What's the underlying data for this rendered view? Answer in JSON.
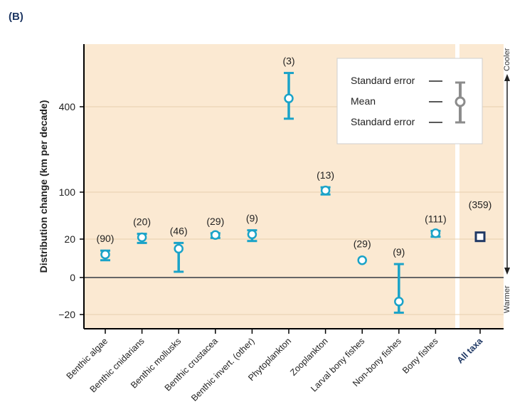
{
  "panel_label": "(B)",
  "chart_data": {
    "type": "scatter",
    "ylabel": "Distribution change (km per decade)",
    "ytick_labels": [
      "400",
      "100",
      "20",
      "0",
      "−20"
    ],
    "categories": [
      "Benthic algae",
      "Benthic cnidarians",
      "Benthic mollusks",
      "Benthic crustacea",
      "Benthic invert. (other)",
      "Phytoplankton",
      "Zooplankton",
      "Larval bony fishes",
      "Non-bony fishes",
      "Bony fishes"
    ],
    "counts": [
      "(90)",
      "(20)",
      "(46)",
      "(29)",
      "(9)",
      "(3)",
      "(13)",
      "(29)",
      "(9)",
      "(111)"
    ],
    "means": [
      12,
      23,
      15,
      27,
      28,
      418,
      106,
      9,
      -13,
      30
    ],
    "lower": [
      9,
      18,
      3,
      22,
      19,
      358,
      96,
      null,
      -19,
      24
    ],
    "upper": [
      14,
      29,
      18,
      30,
      35,
      473,
      117,
      null,
      7,
      34
    ],
    "all_taxa": {
      "label": "All taxa",
      "count": "(359)",
      "mean": 24
    },
    "legend": {
      "upper": "Standard error",
      "mean": "Mean",
      "lower": "Standard error"
    },
    "side_labels": {
      "top": "Cooler",
      "bottom": "Warmer"
    },
    "grid": true,
    "colors": {
      "series": "#1aa3c8",
      "all_taxa": "#1f3864",
      "background": "#fbe9d2",
      "legend_marker": "#8c8c8c",
      "panel_label": "#1f3864"
    }
  }
}
